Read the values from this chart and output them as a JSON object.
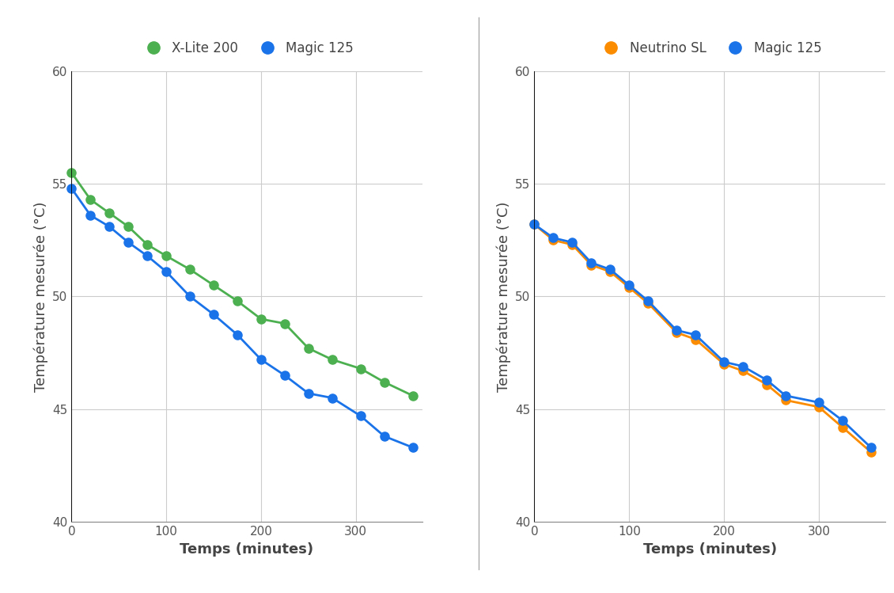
{
  "left": {
    "xlabel": "Temps (minutes)",
    "ylabel": "Température mesurée (°C)",
    "ylim": [
      40,
      60
    ],
    "xlim": [
      0,
      370
    ],
    "yticks": [
      40,
      45,
      50,
      55,
      60
    ],
    "xticks": [
      0,
      100,
      200,
      300
    ],
    "series": [
      {
        "label": "X-Lite 200",
        "color": "#4caf50",
        "x": [
          0,
          20,
          40,
          60,
          80,
          100,
          125,
          150,
          175,
          200,
          225,
          250,
          275,
          305,
          330,
          360
        ],
        "y": [
          55.5,
          54.3,
          53.7,
          53.1,
          52.3,
          51.8,
          51.2,
          50.5,
          49.8,
          49.0,
          48.8,
          47.7,
          47.2,
          46.8,
          46.2,
          45.6
        ]
      },
      {
        "label": "Magic 125",
        "color": "#1a73e8",
        "x": [
          0,
          20,
          40,
          60,
          80,
          100,
          125,
          150,
          175,
          200,
          225,
          250,
          275,
          305,
          330,
          360
        ],
        "y": [
          54.8,
          53.6,
          53.1,
          52.4,
          51.8,
          51.1,
          50.0,
          49.2,
          48.3,
          47.2,
          46.5,
          45.7,
          45.5,
          44.7,
          43.8,
          43.3
        ]
      }
    ]
  },
  "right": {
    "xlabel": "Temps (minutes)",
    "ylabel": "Température mesurée (°C)",
    "ylim": [
      40,
      60
    ],
    "xlim": [
      0,
      370
    ],
    "yticks": [
      40,
      45,
      50,
      55,
      60
    ],
    "xticks": [
      0,
      100,
      200,
      300
    ],
    "series": [
      {
        "label": "Neutrino SL",
        "color": "#fb8c00",
        "x": [
          0,
          20,
          40,
          60,
          80,
          100,
          120,
          150,
          170,
          200,
          220,
          245,
          265,
          300,
          325,
          355
        ],
        "y": [
          53.2,
          52.5,
          52.3,
          51.4,
          51.1,
          50.4,
          49.7,
          48.4,
          48.1,
          47.0,
          46.7,
          46.1,
          45.4,
          45.1,
          44.2,
          43.1
        ]
      },
      {
        "label": "Magic 125",
        "color": "#1a73e8",
        "x": [
          0,
          20,
          40,
          60,
          80,
          100,
          120,
          150,
          170,
          200,
          220,
          245,
          265,
          300,
          325,
          355
        ],
        "y": [
          53.2,
          52.6,
          52.4,
          51.5,
          51.2,
          50.5,
          49.8,
          48.5,
          48.3,
          47.1,
          46.9,
          46.3,
          45.6,
          45.3,
          44.5,
          43.3
        ]
      }
    ]
  },
  "background_color": "#ffffff",
  "plot_bg_color": "#ffffff",
  "grid_color": "#cccccc",
  "legend_fontsize": 12,
  "axis_label_fontsize": 13,
  "tick_fontsize": 11,
  "marker_size": 8,
  "line_width": 2.0,
  "divider_color": "#aaaaaa"
}
